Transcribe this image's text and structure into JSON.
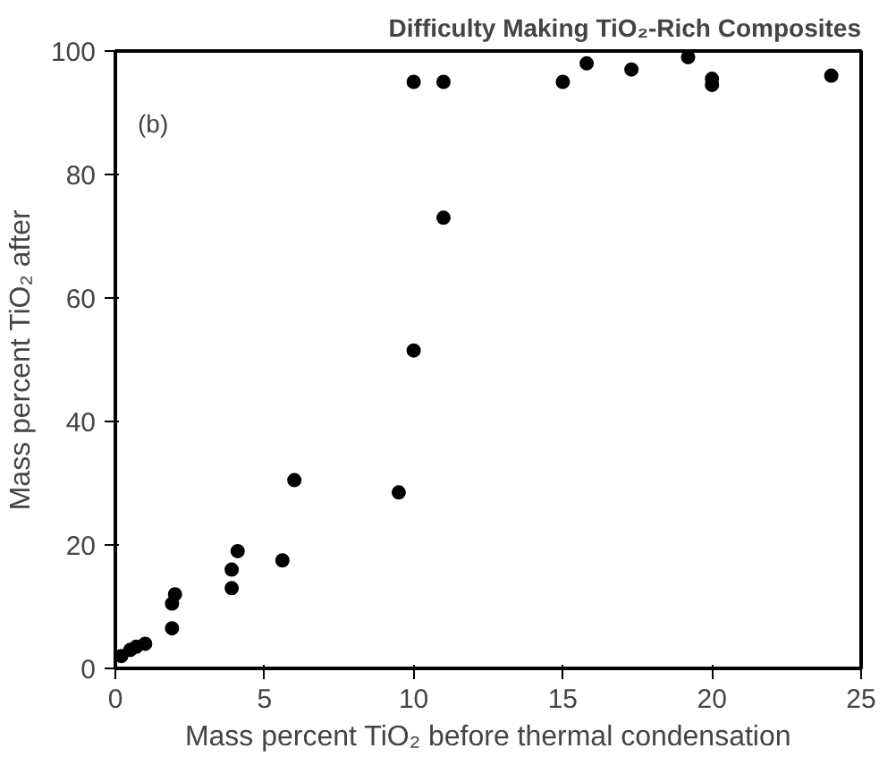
{
  "chart_data": {
    "type": "scatter",
    "title": "Difficulty Making TiO₂-Rich Composites",
    "xlabel": "Mass percent TiO₂ before thermal condensation",
    "ylabel": "Mass percent TiO₂ after",
    "annotations": [
      "(b)"
    ],
    "series": [
      {
        "color": "#000000",
        "x": [
          0.2,
          0.5,
          0.7,
          1,
          1.9,
          1.9,
          2,
          3.9,
          3.9,
          4.1,
          5.6,
          6,
          9.5,
          10,
          10,
          11,
          11,
          15,
          15.8,
          17.3,
          19.2,
          20,
          20,
          24
        ],
        "values": [
          2,
          3,
          3.5,
          4,
          6.5,
          10.5,
          12,
          13,
          16,
          19,
          17.5,
          30.5,
          28.5,
          51.5,
          95,
          95,
          73,
          95,
          98,
          97,
          99,
          95.5,
          94.5,
          96
        ]
      }
    ],
    "xlim": [
      0,
      25
    ],
    "ylim": [
      0,
      100
    ],
    "xticks": [
      0,
      5,
      10,
      15,
      20,
      25
    ],
    "yticks": [
      0,
      20,
      40,
      60,
      80,
      100
    ],
    "grid": false,
    "marker": "circle"
  }
}
